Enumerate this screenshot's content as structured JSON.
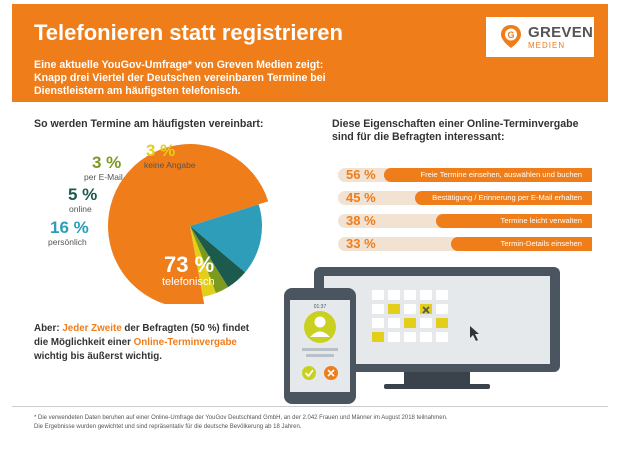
{
  "header": {
    "title": "Telefonieren statt registrieren",
    "intro_lines": [
      "Eine aktuelle YouGov-Umfrage* von Greven Medien zeigt:",
      "Knapp drei Viertel der Deutschen vereinbaren Termine bei",
      "Dienstleistern am häufigsten telefonisch."
    ]
  },
  "logo": {
    "name": "GREVEN",
    "sub": "MEDIEN",
    "mark_letter": "G"
  },
  "pie_section": {
    "title": "So werden Termine am häufigsten vereinbart:"
  },
  "bars_section": {
    "title_lines": [
      "Diese Eigenschaften einer Online-Terminvergabe",
      "sind für die Befragten interessant:"
    ]
  },
  "colors": {
    "orange": "#ee7d1a",
    "blue": "#2e9db9",
    "dark_green": "#1b5a4c",
    "olive": "#7c9a1e",
    "yellow": "#e3cf1a",
    "bar_background": "#f2e2d2"
  },
  "chart_data": [
    {
      "type": "pie",
      "title": "So werden Termine am häufigsten vereinbart:",
      "slices": [
        {
          "label": "telefonisch",
          "value": 73,
          "value_label": "73 %",
          "color": "#ee7d1a"
        },
        {
          "label": "persönlich",
          "value": 16,
          "value_label": "16 %",
          "color": "#2e9db9"
        },
        {
          "label": "online",
          "value": 5,
          "value_label": "5 %",
          "color": "#1b5a4c"
        },
        {
          "label": "per E-Mail",
          "value": 3,
          "value_label": "3 %",
          "color": "#7c9a1e"
        },
        {
          "label": "keine Angabe",
          "value": 3,
          "value_label": "3 %",
          "color": "#e3cf1a"
        }
      ]
    },
    {
      "type": "bar",
      "title": "Diese Eigenschaften einer Online-Terminvergabe sind für die Befragten interessant:",
      "ylim": [
        0,
        100
      ],
      "categories": [
        "Freie Termine einsehen, auswählen und buchen",
        "Bestätigung / Erinnerung per E-Mail erhalten",
        "Termine leicht verwalten",
        "Termin-Details einsehen"
      ],
      "values": [
        56,
        45,
        38,
        33
      ],
      "value_labels": [
        "56 %",
        "45 %",
        "38 %",
        "33 %"
      ]
    }
  ],
  "conclusion": {
    "line1_prefix": "Aber: ",
    "line1_highlight": "Jeder Zweite",
    "line1_suffix": " der Befragten (50 %) findet",
    "line2_prefix": "die Möglichkeit einer ",
    "line2_highlight": "Online-Terminvergabe",
    "line3": "wichtig bis äußerst wichtig."
  },
  "illustration": {
    "phone_time": "01:37"
  },
  "footnote": {
    "line1": "* Die verwendeten Daten beruhen auf einer Online-Umfrage der YouGov Deutschland GmbH, an der 2.042 Frauen und Männer im August 2018 teilnahmen.",
    "line2": "Die Ergebnisse wurden gewichtet und sind repräsentativ für die deutsche Bevölkerung ab 18 Jahren."
  }
}
